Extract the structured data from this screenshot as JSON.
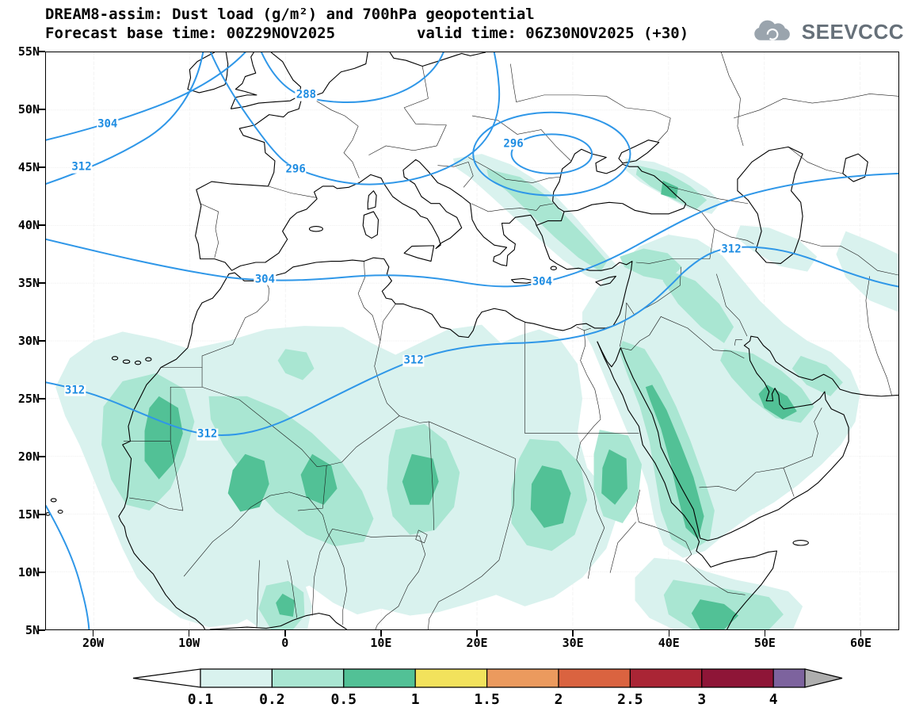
{
  "header": {
    "title": "DREAM8-assim: Dust load (g/m²) and 700hPa geopotential",
    "subtitle": "Forecast base time: 00Z29NOV2025         valid time: 06Z30NOV2025 (+30)",
    "logo_text": "SEEVCCC"
  },
  "axes": {
    "y_labels": [
      "55N",
      "50N",
      "45N",
      "40N",
      "35N",
      "30N",
      "25N",
      "20N",
      "15N",
      "10N",
      "5N"
    ],
    "x_labels": [
      "20W",
      "10W",
      "0",
      "10E",
      "20E",
      "30E",
      "40E",
      "50E",
      "60E"
    ]
  },
  "colorbar": {
    "labels": [
      "0.1",
      "0.2",
      "0.5",
      "1",
      "1.5",
      "2",
      "2.5",
      "3",
      "4"
    ],
    "box_colors": [
      "#d9f2ee",
      "#a9e6d2",
      "#52c196",
      "#f2e25c",
      "#eb9a5e",
      "#da6340",
      "#aa2535",
      "#8e1537",
      "#7d639e"
    ],
    "left_arrow_color": "#ffffff",
    "right_arrow_color": "#aeaeae",
    "units": "g/m²"
  },
  "chart_data": {
    "type": "heatmap",
    "title": "DREAM8-assim: Dust load (g/m²) and 700hPa geopotential",
    "forecast_base_time": "00Z29NOV2025",
    "valid_time": "06Z30NOV2025 (+30)",
    "forecast_hour": 30,
    "variable_shaded": "Dust load (g/m²)",
    "variable_contours": "700hPa geopotential",
    "lon_range": [
      -25,
      64
    ],
    "lat_range": [
      5,
      55
    ],
    "x_ticks": [
      "20W",
      "10W",
      "0",
      "10E",
      "20E",
      "30E",
      "40E",
      "50E",
      "60E"
    ],
    "y_ticks": [
      "5N",
      "10N",
      "15N",
      "20N",
      "25N",
      "30N",
      "35N",
      "40N",
      "45N",
      "50N",
      "55N"
    ],
    "shading_levels_g_m2": [
      0.1,
      0.2,
      0.5,
      1,
      1.5,
      2,
      2.5,
      3,
      4
    ],
    "max_shaded_level_visible_g_m2": 1,
    "geopotential_contour_values": [
      288,
      296,
      304,
      312
    ],
    "geopotential_labels": [
      {
        "value": "304",
        "lon": -18.5,
        "lat": 48.7
      },
      {
        "value": "312",
        "lon": -21.2,
        "lat": 45.0
      },
      {
        "value": "288",
        "lon": 2.2,
        "lat": 51.2
      },
      {
        "value": "296",
        "lon": 1.1,
        "lat": 44.8
      },
      {
        "value": "296",
        "lon": 23.8,
        "lat": 47.0
      },
      {
        "value": "304",
        "lon": -2.1,
        "lat": 35.3
      },
      {
        "value": "304",
        "lon": 26.8,
        "lat": 35.1
      },
      {
        "value": "312",
        "lon": 13.4,
        "lat": 28.3
      },
      {
        "value": "312",
        "lon": -21.9,
        "lat": 25.7
      },
      {
        "value": "312",
        "lon": -8.1,
        "lat": 21.9
      },
      {
        "value": "312",
        "lon": 46.5,
        "lat": 37.9
      }
    ],
    "closed_low": {
      "center_lon": 27.8,
      "center_lat": 46.2,
      "labeled_contour": "296"
    },
    "dust_regions": [
      {
        "area": "Mauritania / Western Sahara",
        "level_g_m2": "0.5-1"
      },
      {
        "area": "Mali / southern Algeria diagonal band",
        "level_g_m2": "0.5-1"
      },
      {
        "area": "Central Sahara (S Algeria / N Niger)",
        "level_g_m2": "0.5-1"
      },
      {
        "area": "Central Libya / N Chad",
        "level_g_m2": "0.5-1"
      },
      {
        "area": "Sudan / S Egypt",
        "level_g_m2": "0.5-1"
      },
      {
        "area": "NE Sudan near Red Sea",
        "level_g_m2": "0.5-1"
      },
      {
        "area": "Red Sea coast of Saudi Arabia (long band)",
        "level_g_m2": "0.5-1"
      },
      {
        "area": "UAE / Persian Gulf",
        "level_g_m2": "0.5-1"
      },
      {
        "area": "Horn of Africa (Ethiopia/Somalia)",
        "level_g_m2": "0.5-1"
      },
      {
        "area": "Ghana / Gulf of Guinea coast",
        "level_g_m2": "0.5-1"
      },
      {
        "area": "Balkans - western Turkey band",
        "level_g_m2": "0.2-0.5"
      },
      {
        "area": "Caucasus / NE Black Sea",
        "level_g_m2": "0.2-0.5"
      },
      {
        "area": "Mesopotamia (Iraq / E Syria)",
        "level_g_m2": "0.2-0.5"
      },
      {
        "area": "S Caspian / N Iran",
        "level_g_m2": "0.1-0.2"
      },
      {
        "area": "West Africa offshore Atlantic",
        "level_g_m2": "0.1-0.2"
      }
    ]
  }
}
